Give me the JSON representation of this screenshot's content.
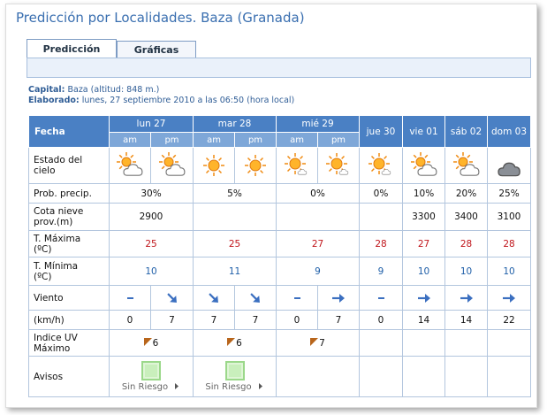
{
  "header": {
    "title": "Predicción por Localidades. Baza (Granada)"
  },
  "tabs": [
    "Predicción",
    "Gráficas"
  ],
  "info": {
    "capital_label": "Capital:",
    "capital": "Baza (altitud: 848 m.)",
    "elaborado_label": "Elaborado:",
    "elaborado": "lunes, 27 septiembre 2010 a las 06:50 (hora local)"
  },
  "table": {
    "fecha": "Fecha",
    "days": [
      "lun 27",
      "mar 28",
      "mié 29",
      "jue 30",
      "vie 01",
      "sáb 02",
      "dom 03"
    ],
    "periods": [
      "am",
      "pm",
      "am",
      "pm",
      "am",
      "pm"
    ],
    "row_labels": [
      "Estado del cielo",
      "Prob. precip.",
      "Cota nieve prov.(m)",
      "T. Máxima (ºC)",
      "T. Mínima (ºC)",
      "Viento",
      "(km/h)",
      "Indice UV Máximo",
      "Avisos"
    ],
    "prob_precip": [
      "30%",
      "5%",
      "0%",
      "0%",
      "10%",
      "20%",
      "25%"
    ],
    "cota_nieve": [
      2900,
      null,
      null,
      null,
      3300,
      3400,
      3100
    ],
    "t_max": [
      25,
      25,
      27,
      28,
      27,
      28,
      28
    ],
    "t_min": [
      10,
      11,
      9,
      9,
      10,
      10,
      10
    ],
    "wind_kmh": [
      0,
      7,
      7,
      7,
      0,
      7,
      0,
      14,
      14,
      22
    ],
    "uv": [
      6,
      6,
      7,
      null,
      null,
      null,
      null
    ],
    "avisos": [
      "Sin Riesgo",
      "Sin Riesgo",
      null,
      null,
      null,
      null,
      null
    ]
  }
}
